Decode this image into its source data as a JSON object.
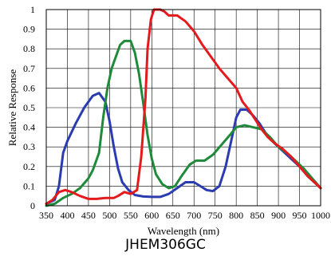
{
  "chart_data": {
    "type": "line",
    "title": "",
    "xlabel": "Wavelength (nm)",
    "ylabel": "Relative Response",
    "xlim": [
      350,
      1000
    ],
    "ylim": [
      0,
      1
    ],
    "xticks": [
      "350",
      "400",
      "450",
      "500",
      "550",
      "600",
      "650",
      "700",
      "750",
      "800",
      "850",
      "900",
      "950",
      "1000"
    ],
    "yticks": [
      "0",
      "0.1",
      "0.2",
      "0.3",
      "0.4",
      "0.5",
      "0.6",
      "0.7",
      "0.8",
      "0.9",
      "1"
    ],
    "grid": true,
    "legend": "none",
    "series": [
      {
        "color": "#2b3bb0",
        "points": [
          [
            350,
            0.01
          ],
          [
            370,
            0.03
          ],
          [
            380,
            0.1
          ],
          [
            390,
            0.27
          ],
          [
            400,
            0.33
          ],
          [
            420,
            0.42
          ],
          [
            440,
            0.5
          ],
          [
            460,
            0.56
          ],
          [
            475,
            0.575
          ],
          [
            490,
            0.53
          ],
          [
            500,
            0.43
          ],
          [
            510,
            0.3
          ],
          [
            520,
            0.19
          ],
          [
            530,
            0.12
          ],
          [
            545,
            0.08
          ],
          [
            560,
            0.055
          ],
          [
            580,
            0.047
          ],
          [
            600,
            0.045
          ],
          [
            620,
            0.045
          ],
          [
            640,
            0.06
          ],
          [
            660,
            0.09
          ],
          [
            680,
            0.12
          ],
          [
            700,
            0.12
          ],
          [
            715,
            0.1
          ],
          [
            730,
            0.08
          ],
          [
            745,
            0.075
          ],
          [
            760,
            0.1
          ],
          [
            775,
            0.2
          ],
          [
            790,
            0.35
          ],
          [
            800,
            0.45
          ],
          [
            810,
            0.49
          ],
          [
            825,
            0.49
          ],
          [
            840,
            0.46
          ],
          [
            855,
            0.42
          ],
          [
            870,
            0.37
          ],
          [
            890,
            0.32
          ],
          [
            910,
            0.28
          ],
          [
            930,
            0.24
          ],
          [
            950,
            0.2
          ],
          [
            970,
            0.15
          ],
          [
            985,
            0.12
          ],
          [
            1000,
            0.09
          ]
        ]
      },
      {
        "color": "#1f8a3a",
        "points": [
          [
            350,
            0.0
          ],
          [
            370,
            0.01
          ],
          [
            390,
            0.04
          ],
          [
            410,
            0.06
          ],
          [
            430,
            0.09
          ],
          [
            450,
            0.14
          ],
          [
            460,
            0.18
          ],
          [
            475,
            0.27
          ],
          [
            485,
            0.45
          ],
          [
            495,
            0.6
          ],
          [
            505,
            0.7
          ],
          [
            515,
            0.76
          ],
          [
            525,
            0.82
          ],
          [
            535,
            0.84
          ],
          [
            550,
            0.84
          ],
          [
            560,
            0.78
          ],
          [
            570,
            0.67
          ],
          [
            580,
            0.52
          ],
          [
            590,
            0.36
          ],
          [
            600,
            0.24
          ],
          [
            610,
            0.16
          ],
          [
            625,
            0.11
          ],
          [
            640,
            0.09
          ],
          [
            655,
            0.1
          ],
          [
            670,
            0.15
          ],
          [
            690,
            0.21
          ],
          [
            705,
            0.23
          ],
          [
            725,
            0.23
          ],
          [
            745,
            0.26
          ],
          [
            765,
            0.31
          ],
          [
            785,
            0.36
          ],
          [
            800,
            0.4
          ],
          [
            820,
            0.41
          ],
          [
            840,
            0.4
          ],
          [
            860,
            0.39
          ],
          [
            880,
            0.35
          ],
          [
            900,
            0.3
          ],
          [
            920,
            0.27
          ],
          [
            940,
            0.23
          ],
          [
            960,
            0.19
          ],
          [
            980,
            0.14
          ],
          [
            1000,
            0.09
          ]
        ]
      },
      {
        "color": "#e41a1c",
        "points": [
          [
            350,
            0.01
          ],
          [
            365,
            0.03
          ],
          [
            380,
            0.07
          ],
          [
            395,
            0.08
          ],
          [
            410,
            0.07
          ],
          [
            430,
            0.05
          ],
          [
            450,
            0.035
          ],
          [
            470,
            0.035
          ],
          [
            490,
            0.04
          ],
          [
            510,
            0.04
          ],
          [
            520,
            0.05
          ],
          [
            535,
            0.07
          ],
          [
            550,
            0.06
          ],
          [
            565,
            0.08
          ],
          [
            575,
            0.25
          ],
          [
            585,
            0.55
          ],
          [
            590,
            0.8
          ],
          [
            598,
            0.95
          ],
          [
            605,
            1.0
          ],
          [
            620,
            1.0
          ],
          [
            630,
            0.99
          ],
          [
            640,
            0.97
          ],
          [
            660,
            0.97
          ],
          [
            680,
            0.94
          ],
          [
            700,
            0.89
          ],
          [
            720,
            0.82
          ],
          [
            740,
            0.76
          ],
          [
            760,
            0.7
          ],
          [
            780,
            0.65
          ],
          [
            800,
            0.6
          ],
          [
            815,
            0.53
          ],
          [
            830,
            0.49
          ],
          [
            845,
            0.44
          ],
          [
            860,
            0.39
          ],
          [
            875,
            0.35
          ],
          [
            890,
            0.32
          ],
          [
            910,
            0.29
          ],
          [
            930,
            0.25
          ],
          [
            950,
            0.2
          ],
          [
            970,
            0.15
          ],
          [
            985,
            0.12
          ],
          [
            1000,
            0.09
          ]
        ]
      }
    ],
    "caption": "JHEM306GC"
  }
}
